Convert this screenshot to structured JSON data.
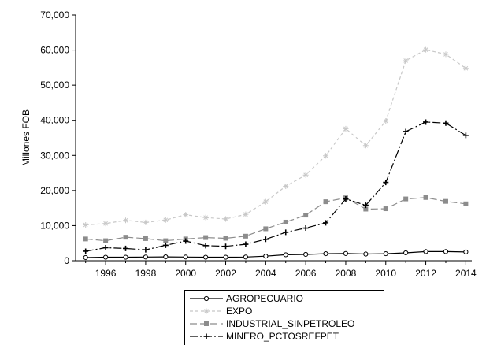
{
  "chart_data": {
    "type": "line",
    "title": "",
    "xlabel": "",
    "ylabel": "Millones FOB",
    "xlim": [
      1994.5,
      2014.3
    ],
    "ylim": [
      0,
      70000
    ],
    "ytick_values": [
      0,
      10000,
      20000,
      30000,
      40000,
      50000,
      60000,
      70000
    ],
    "ytick_labels": [
      "0",
      "10,000",
      "20,000",
      "30,000",
      "40,000",
      "50,000",
      "60,000",
      "70,000"
    ],
    "xtick_values": [
      1996,
      1998,
      2000,
      2002,
      2004,
      2006,
      2008,
      2010,
      2012,
      2014
    ],
    "xtick_labels": [
      "1996",
      "1998",
      "2000",
      "2002",
      "2004",
      "2006",
      "2008",
      "2010",
      "2012",
      "2014"
    ],
    "grid": false,
    "legend_position": "bottom",
    "x": [
      1995,
      1996,
      1997,
      1998,
      1999,
      2000,
      2001,
      2002,
      2003,
      2004,
      2005,
      2006,
      2007,
      2008,
      2009,
      2010,
      2011,
      2012,
      2013,
      2014
    ],
    "series": [
      {
        "name": "AGROPECUARIO",
        "color": "#000000",
        "dash": "",
        "marker": "circle",
        "values": [
          900,
          1000,
          1000,
          1050,
          1100,
          1050,
          1000,
          1000,
          1050,
          1300,
          1700,
          1800,
          2000,
          2050,
          1900,
          2000,
          2250,
          2600,
          2600,
          2500
        ]
      },
      {
        "name": "EXPO",
        "color": "#c8c8c8",
        "dash": "4,3",
        "marker": "star",
        "values": [
          10200,
          10600,
          11500,
          10900,
          11600,
          13100,
          12300,
          11900,
          13200,
          16800,
          21200,
          24400,
          29900,
          37600,
          32800,
          39800,
          57000,
          60100,
          58800,
          54800
        ]
      },
      {
        "name": "INDUSTRIAL_SINPETROLEO",
        "color": "#8c8c8c",
        "dash": "9,4",
        "marker": "square",
        "values": [
          6200,
          5700,
          6700,
          6300,
          5700,
          6200,
          6600,
          6400,
          7000,
          9100,
          11000,
          13000,
          16800,
          17900,
          14700,
          14800,
          17600,
          18000,
          16900,
          16200
        ]
      },
      {
        "name": "MINERO_PCTOSREFPET",
        "color": "#000000",
        "dash": "10,3,2,3",
        "marker": "plus",
        "values": [
          2700,
          3700,
          3500,
          3100,
          4400,
          5600,
          4300,
          4100,
          4700,
          6100,
          8100,
          9300,
          10800,
          17600,
          15800,
          22300,
          36800,
          39500,
          39200,
          35700
        ]
      }
    ]
  }
}
